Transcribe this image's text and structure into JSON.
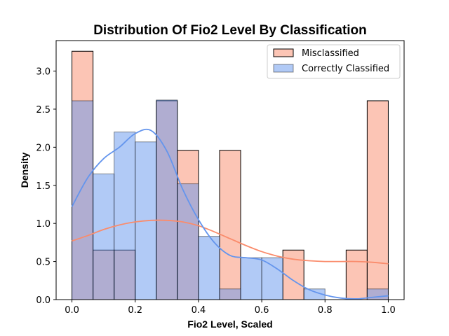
{
  "chart_data": {
    "type": "bar",
    "title": "Distribution Of Fio2 Level By Classification",
    "xlabel": "Fio2 Level, Scaled",
    "ylabel": "Density",
    "xlim": [
      -0.05,
      1.05
    ],
    "ylim": [
      0,
      3.4
    ],
    "xticks": [
      0.0,
      0.2,
      0.4,
      0.6,
      0.8,
      1.0
    ],
    "xtick_labels": [
      "0.0",
      "0.2",
      "0.4",
      "0.6",
      "0.8",
      "1.0"
    ],
    "yticks": [
      0.0,
      0.5,
      1.0,
      1.5,
      2.0,
      2.5,
      3.0
    ],
    "ytick_labels": [
      "0.0",
      "0.5",
      "1.0",
      "1.5",
      "2.0",
      "2.5",
      "3.0"
    ],
    "grid": false,
    "legend_position": "top-right",
    "bin_edges": [
      0.0,
      0.0667,
      0.1333,
      0.2,
      0.2667,
      0.3333,
      0.4,
      0.4667,
      0.5333,
      0.6,
      0.6667,
      0.7333,
      0.8,
      0.8667,
      0.9333,
      1.0
    ],
    "series": [
      {
        "name": "Misclassified",
        "color": "#fa8c6c",
        "values": [
          3.26,
          0.65,
          0.65,
          0.0,
          2.61,
          1.96,
          0.0,
          1.96,
          0.0,
          0.0,
          0.65,
          0.0,
          0.0,
          0.65,
          2.61
        ],
        "kde_x": [
          0.0,
          0.05,
          0.1,
          0.15,
          0.2,
          0.25,
          0.3,
          0.35,
          0.4,
          0.45,
          0.5,
          0.55,
          0.6,
          0.65,
          0.7,
          0.75,
          0.8,
          0.85,
          0.9,
          0.95,
          1.0
        ],
        "kde_y": [
          0.77,
          0.84,
          0.92,
          0.98,
          1.02,
          1.04,
          1.04,
          1.02,
          0.97,
          0.89,
          0.8,
          0.71,
          0.63,
          0.57,
          0.53,
          0.51,
          0.5,
          0.5,
          0.5,
          0.49,
          0.47
        ]
      },
      {
        "name": "Correctly Classified",
        "color": "#6495ed",
        "values": [
          2.61,
          1.65,
          2.2,
          2.07,
          2.62,
          1.52,
          0.83,
          0.14,
          0.55,
          0.55,
          0.0,
          0.14,
          0.0,
          0.0,
          0.14
        ],
        "kde_x": [
          0.0,
          0.05,
          0.1,
          0.15,
          0.2,
          0.25,
          0.3,
          0.35,
          0.4,
          0.45,
          0.5,
          0.55,
          0.6,
          0.65,
          0.7,
          0.75,
          0.8,
          0.85,
          0.9,
          0.95,
          1.0
        ],
        "kde_y": [
          1.22,
          1.6,
          1.85,
          2.0,
          2.18,
          2.22,
          1.95,
          1.45,
          1.05,
          0.75,
          0.58,
          0.55,
          0.52,
          0.4,
          0.25,
          0.13,
          0.06,
          0.02,
          0.01,
          0.03,
          0.05
        ]
      }
    ]
  }
}
